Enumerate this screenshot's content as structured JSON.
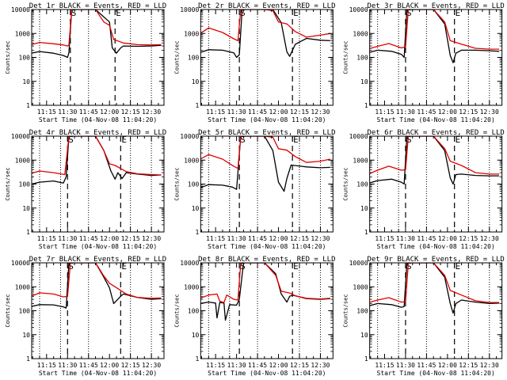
{
  "chart_data": [
    {
      "type": "line",
      "title": "Det 1r BLACK = Events, RED = LLD",
      "xlabel": "Start Time (04-Nov-08 11:04:20)",
      "ylabel": "Counts/sec",
      "scale": "log",
      "ylim": [
        1,
        10000
      ],
      "x_ticks": [
        "11:15",
        "11:30",
        "11:45",
        "12:00",
        "12:15",
        "12:30"
      ],
      "y_ticks": [
        "1",
        "10",
        "100",
        "1000",
        "10000"
      ],
      "markers": [
        {
          "label": "S",
          "time": "11:32"
        },
        {
          "label": "E",
          "time": "12:04"
        }
      ],
      "series": [
        {
          "color": "#000000",
          "x": [
            "11:04",
            "11:10",
            "11:20",
            "11:27",
            "11:30",
            "11:31",
            "11:33",
            "11:36",
            "11:43",
            "11:50",
            "12:00",
            "12:02",
            "12:05",
            "12:08",
            "12:10",
            "12:20",
            "12:30",
            "12:37"
          ],
          "values": [
            150,
            175,
            150,
            120,
            100,
            155,
            10000,
            10000,
            10000,
            10000,
            3000,
            250,
            150,
            250,
            300,
            290,
            300,
            320
          ]
        },
        {
          "color": "#e00000",
          "x": [
            "11:04",
            "11:10",
            "11:20",
            "11:27",
            "11:30",
            "11:31",
            "11:33",
            "11:36",
            "11:43",
            "11:50",
            "11:56",
            "12:00",
            "12:03",
            "12:10",
            "12:20",
            "12:30",
            "12:37"
          ],
          "values": [
            340,
            420,
            370,
            330,
            300,
            330,
            10000,
            10000,
            10000,
            10000,
            3000,
            2200,
            560,
            400,
            340,
            330,
            340
          ]
        }
      ]
    },
    {
      "type": "line",
      "title": "Det 2r BLACK = Events, RED = LLD",
      "xlabel": "Start Time (04-Nov-08 11:04:20)",
      "ylabel": "Counts/sec",
      "scale": "log",
      "ylim": [
        1,
        10000
      ],
      "x_ticks": [
        "11:15",
        "11:30",
        "11:45",
        "12:00",
        "12:15",
        "12:30"
      ],
      "y_ticks": [
        "1",
        "10",
        "100",
        "1000",
        "10000"
      ],
      "markers": [
        {
          "label": "S",
          "time": "11:32"
        },
        {
          "label": "E",
          "time": "12:10"
        }
      ],
      "series": [
        {
          "color": "#000000",
          "x": [
            "11:04",
            "11:10",
            "11:20",
            "11:28",
            "11:30",
            "11:32",
            "11:34",
            "11:40",
            "11:50",
            "11:56",
            "12:02",
            "12:06",
            "12:08",
            "12:12",
            "12:20",
            "12:30",
            "12:37"
          ],
          "values": [
            160,
            210,
            200,
            155,
            100,
            130,
            10000,
            10000,
            10000,
            10000,
            2800,
            170,
            110,
            350,
            620,
            520,
            500
          ]
        },
        {
          "color": "#e00000",
          "x": [
            "11:04",
            "11:10",
            "11:20",
            "11:28",
            "11:31",
            "11:33",
            "11:40",
            "11:50",
            "11:56",
            "12:00",
            "12:06",
            "12:12",
            "12:20",
            "12:30",
            "12:37"
          ],
          "values": [
            1000,
            1700,
            1100,
            600,
            500,
            10000,
            10000,
            10000,
            9000,
            3000,
            2500,
            1200,
            700,
            850,
            1000
          ]
        }
      ]
    },
    {
      "type": "line",
      "title": "Det 3r BLACK = Events, RED = LLD",
      "xlabel": "Start Time (04-Nov-08 11:04:20)",
      "ylabel": "Counts/sec",
      "scale": "log",
      "ylim": [
        1,
        10000
      ],
      "x_ticks": [
        "11:15",
        "11:30",
        "11:45",
        "12:00",
        "12:15",
        "12:30"
      ],
      "y_ticks": [
        "1",
        "10",
        "100",
        "1000",
        "10000"
      ],
      "markers": [
        {
          "label": "S",
          "time": "11:30"
        },
        {
          "label": "E",
          "time": "12:05"
        }
      ],
      "series": [
        {
          "color": "#000000",
          "x": [
            "11:04",
            "11:10",
            "11:20",
            "11:27",
            "11:29",
            "11:31",
            "11:34",
            "11:40",
            "11:50",
            "11:58",
            "12:02",
            "12:04",
            "12:06",
            "12:10",
            "12:20",
            "12:30",
            "12:37"
          ],
          "values": [
            160,
            200,
            180,
            135,
            100,
            10000,
            10000,
            10000,
            10000,
            2500,
            120,
            60,
            150,
            200,
            200,
            190,
            180
          ]
        },
        {
          "color": "#e00000",
          "x": [
            "11:04",
            "11:10",
            "11:18",
            "11:27",
            "11:30",
            "11:32",
            "11:40",
            "11:50",
            "11:58",
            "12:02",
            "12:10",
            "12:20",
            "12:30",
            "12:37"
          ],
          "values": [
            230,
            290,
            380,
            250,
            280,
            10000,
            10000,
            10000,
            3000,
            500,
            360,
            240,
            220,
            220
          ]
        }
      ]
    },
    {
      "type": "line",
      "title": "Det 4r BLACK = Events, RED = LLD",
      "xlabel": "Start Time (04-Nov-08 11:04:20)",
      "ylabel": "Counts/sec",
      "scale": "log",
      "ylim": [
        1,
        10000
      ],
      "x_ticks": [
        "11:15",
        "11:30",
        "11:45",
        "12:00",
        "12:15",
        "12:30"
      ],
      "y_ticks": [
        "1",
        "10",
        "100",
        "1000",
        "10000"
      ],
      "markers": [
        {
          "label": "S",
          "time": "11:30"
        },
        {
          "label": "E",
          "time": "12:08"
        }
      ],
      "series": [
        {
          "color": "#000000",
          "x": [
            "11:04",
            "11:10",
            "11:20",
            "11:27",
            "11:29",
            "11:31",
            "11:34",
            "11:40",
            "11:50",
            "11:56",
            "12:01",
            "12:04",
            "12:06",
            "12:09",
            "12:12",
            "12:20",
            "12:30",
            "12:37"
          ],
          "values": [
            100,
            120,
            135,
            110,
            200,
            10000,
            10000,
            10000,
            10000,
            2500,
            350,
            160,
            300,
            170,
            300,
            260,
            230,
            240
          ]
        },
        {
          "color": "#e00000",
          "x": [
            "11:04",
            "11:10",
            "11:20",
            "11:28",
            "11:31",
            "11:34",
            "11:40",
            "11:50",
            "11:56",
            "12:00",
            "12:04",
            "12:12",
            "12:20",
            "12:30",
            "12:37"
          ],
          "values": [
            280,
            350,
            300,
            250,
            10000,
            10000,
            10000,
            10000,
            2500,
            700,
            600,
            330,
            270,
            250,
            240
          ]
        }
      ]
    },
    {
      "type": "line",
      "title": "Det 5r BLACK = Events, RED = LLD",
      "xlabel": "Start Time (04-Nov-08 11:04:20)",
      "ylabel": "Counts/sec",
      "scale": "log",
      "ylim": [
        1,
        10000
      ],
      "x_ticks": [
        "11:15",
        "11:30",
        "11:45",
        "12:00",
        "12:15",
        "12:30"
      ],
      "y_ticks": [
        "1",
        "10",
        "100",
        "1000",
        "10000"
      ],
      "markers": [
        {
          "label": "S",
          "time": "11:32"
        },
        {
          "label": "E",
          "time": "12:10"
        }
      ],
      "series": [
        {
          "color": "#000000",
          "x": [
            "11:04",
            "11:10",
            "11:20",
            "11:27",
            "11:30",
            "11:33",
            "11:37",
            "11:43",
            "11:50",
            "11:56",
            "12:00",
            "12:04",
            "12:06",
            "12:09",
            "12:20",
            "12:30",
            "12:37"
          ],
          "values": [
            70,
            95,
            90,
            75,
            60,
            10000,
            10000,
            10000,
            10000,
            2500,
            120,
            50,
            170,
            620,
            520,
            480,
            500
          ]
        },
        {
          "color": "#e00000",
          "x": [
            "11:04",
            "11:10",
            "11:20",
            "11:28",
            "11:31",
            "11:33",
            "11:40",
            "11:50",
            "11:56",
            "12:00",
            "12:06",
            "12:12",
            "12:20",
            "12:30",
            "12:37"
          ],
          "values": [
            1100,
            1700,
            1100,
            550,
            450,
            10000,
            10000,
            10000,
            9000,
            3000,
            2600,
            1400,
            800,
            900,
            1100
          ]
        }
      ]
    },
    {
      "type": "line",
      "title": "Det 6r BLACK = Events, RED = LLD",
      "xlabel": "Start Time (04-Nov-08 11:04:20)",
      "ylabel": "Counts/sec",
      "scale": "log",
      "ylim": [
        1,
        10000
      ],
      "x_ticks": [
        "11:15",
        "11:30",
        "11:45",
        "12:00",
        "12:15",
        "12:30"
      ],
      "y_ticks": [
        "1",
        "10",
        "100",
        "1000",
        "10000"
      ],
      "markers": [
        {
          "label": "S",
          "time": "11:30"
        },
        {
          "label": "E",
          "time": "12:05"
        }
      ],
      "series": [
        {
          "color": "#000000",
          "x": [
            "11:04",
            "11:10",
            "11:20",
            "11:27",
            "11:29",
            "11:31",
            "11:34",
            "11:40",
            "11:50",
            "11:58",
            "12:02",
            "12:04",
            "12:06",
            "12:10",
            "12:20",
            "12:30",
            "12:37"
          ],
          "values": [
            110,
            140,
            160,
            120,
            100,
            10000,
            10000,
            10000,
            10000,
            2500,
            180,
            100,
            250,
            260,
            230,
            220,
            220
          ]
        },
        {
          "color": "#e00000",
          "x": [
            "11:04",
            "11:10",
            "11:18",
            "11:27",
            "11:30",
            "11:32",
            "11:40",
            "11:50",
            "11:58",
            "12:02",
            "12:10",
            "12:20",
            "12:30",
            "12:37"
          ],
          "values": [
            270,
            380,
            560,
            380,
            400,
            10000,
            10000,
            10000,
            3000,
            900,
            600,
            300,
            260,
            260
          ]
        }
      ]
    },
    {
      "type": "line",
      "title": "Det 7r BLACK = Events, RED = LLD",
      "xlabel": "Start Time (04-Nov-08 11:04:20)",
      "ylabel": "Counts/sec",
      "scale": "log",
      "ylim": [
        1,
        10000
      ],
      "x_ticks": [
        "11:15",
        "11:30",
        "11:45",
        "12:00",
        "12:15",
        "12:30"
      ],
      "y_ticks": [
        "1",
        "10",
        "100",
        "1000",
        "10000"
      ],
      "markers": [
        {
          "label": "S",
          "time": "11:30"
        },
        {
          "label": "E",
          "time": "12:08"
        }
      ],
      "series": [
        {
          "color": "#000000",
          "x": [
            "11:04",
            "11:10",
            "11:20",
            "11:27",
            "11:29",
            "11:31",
            "11:34",
            "11:40",
            "11:50",
            "11:56",
            "12:00",
            "12:03",
            "12:06",
            "12:08",
            "12:10",
            "12:20",
            "12:30",
            "12:37"
          ],
          "values": [
            150,
            180,
            175,
            145,
            130,
            10000,
            10000,
            10000,
            10000,
            2500,
            900,
            200,
            300,
            400,
            500,
            360,
            300,
            320
          ]
        },
        {
          "color": "#e00000",
          "x": [
            "11:04",
            "11:10",
            "11:20",
            "11:27",
            "11:30",
            "11:32",
            "11:40",
            "11:50",
            "11:56",
            "12:00",
            "12:04",
            "12:12",
            "12:20",
            "12:30",
            "12:37"
          ],
          "values": [
            400,
            560,
            500,
            380,
            400,
            10000,
            10000,
            10000,
            2800,
            1400,
            1000,
            500,
            360,
            330,
            340
          ]
        }
      ]
    },
    {
      "type": "line",
      "title": "Det 8r BLACK = Events, RED = LLD",
      "xlabel": "Start Time (04-Nov-08 11:04:20)",
      "ylabel": "Counts/sec",
      "scale": "log",
      "ylim": [
        1,
        10000
      ],
      "x_ticks": [
        "11:15",
        "11:30",
        "11:45",
        "12:00",
        "12:15",
        "12:30"
      ],
      "y_ticks": [
        "1",
        "10",
        "100",
        "1000",
        "10000"
      ],
      "markers": [
        {
          "label": "S",
          "time": "11:32"
        },
        {
          "label": "E",
          "time": "12:10"
        }
      ],
      "series": [
        {
          "color": "#000000",
          "x": [
            "11:04",
            "11:10",
            "11:15",
            "11:16",
            "11:18",
            "11:21",
            "11:22",
            "11:25",
            "11:30",
            "11:32",
            "11:35",
            "11:43",
            "11:50",
            "11:58",
            "12:02",
            "12:06",
            "12:08",
            "12:10",
            "12:20",
            "12:30",
            "12:37"
          ],
          "values": [
            200,
            230,
            210,
            50,
            220,
            210,
            40,
            180,
            170,
            300,
            10000,
            10000,
            10000,
            3500,
            500,
            230,
            400,
            450,
            320,
            300,
            320
          ]
        },
        {
          "color": "#e00000",
          "x": [
            "11:04",
            "11:10",
            "11:16",
            "11:18",
            "11:21",
            "11:23",
            "11:28",
            "11:31",
            "11:33",
            "11:40",
            "11:50",
            "11:58",
            "12:02",
            "12:08",
            "12:12",
            "12:20",
            "12:30",
            "12:37"
          ],
          "values": [
            330,
            450,
            500,
            250,
            220,
            450,
            300,
            280,
            10000,
            10000,
            10000,
            3000,
            650,
            550,
            420,
            330,
            310,
            330
          ]
        }
      ]
    },
    {
      "type": "line",
      "title": "Det 9r BLACK = Events, RED = LLD",
      "xlabel": "Start Time (04-Nov-08 11:04:20)",
      "ylabel": "Counts/sec",
      "scale": "log",
      "ylim": [
        1,
        10000
      ],
      "x_ticks": [
        "11:15",
        "11:30",
        "11:45",
        "12:00",
        "12:15",
        "12:30"
      ],
      "y_ticks": [
        "1",
        "10",
        "100",
        "1000",
        "10000"
      ],
      "markers": [
        {
          "label": "S",
          "time": "11:30"
        },
        {
          "label": "E",
          "time": "12:05"
        }
      ],
      "series": [
        {
          "color": "#000000",
          "x": [
            "11:04",
            "11:10",
            "11:20",
            "11:27",
            "11:29",
            "11:31",
            "11:34",
            "11:40",
            "11:50",
            "11:58",
            "12:02",
            "12:04",
            "12:06",
            "12:10",
            "12:20",
            "12:30",
            "12:37"
          ],
          "values": [
            160,
            200,
            180,
            140,
            150,
            10000,
            10000,
            10000,
            10000,
            2500,
            200,
            80,
            200,
            280,
            230,
            200,
            210
          ]
        },
        {
          "color": "#e00000",
          "x": [
            "11:04",
            "11:10",
            "11:18",
            "11:27",
            "11:30",
            "11:32",
            "11:40",
            "11:50",
            "11:58",
            "12:02",
            "12:10",
            "12:20",
            "12:30",
            "12:37"
          ],
          "values": [
            220,
            280,
            350,
            230,
            240,
            10000,
            10000,
            10000,
            3000,
            700,
            450,
            260,
            220,
            220
          ]
        }
      ]
    }
  ]
}
